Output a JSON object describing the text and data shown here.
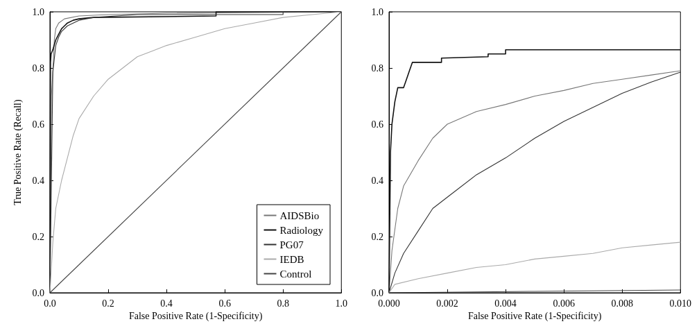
{
  "chart_data": [
    {
      "type": "line",
      "xlabel": "False Positive Rate (1-Specificity)",
      "ylabel": "True Positive Rate (Recall)",
      "xlim": [
        0,
        1
      ],
      "ylim": [
        0,
        1
      ],
      "xticks": [
        {
          "value": 0,
          "label": "0.0"
        },
        {
          "value": 0.2,
          "label": "0.2"
        },
        {
          "value": 0.4,
          "label": "0.4"
        },
        {
          "value": 0.6,
          "label": "0.6"
        },
        {
          "value": 0.8,
          "label": "0.8"
        },
        {
          "value": 1,
          "label": "1.0"
        }
      ],
      "yticks": [
        {
          "value": 0,
          "label": "0.0"
        },
        {
          "value": 0.2,
          "label": "0.2"
        },
        {
          "value": 0.4,
          "label": "0.4"
        },
        {
          "value": 0.6,
          "label": "0.6"
        },
        {
          "value": 0.8,
          "label": "0.8"
        },
        {
          "value": 1,
          "label": "1.0"
        }
      ],
      "grid": false,
      "legend": "bottom right",
      "marker": "none",
      "series": [
        {
          "name": "AIDSBio",
          "color": "#777777",
          "x": [
            0,
            0.005,
            0.01,
            0.015,
            0.02,
            0.03,
            0.05,
            0.1,
            0.2,
            0.4,
            1
          ],
          "values": [
            0,
            0.7,
            0.79,
            0.9,
            0.94,
            0.96,
            0.975,
            0.985,
            0.99,
            0.995,
            1
          ]
        },
        {
          "name": "Radiology",
          "color": "#111111",
          "x": [
            0,
            0.001,
            0.002,
            0.004,
            0.01,
            0.02,
            0.03,
            0.04,
            0.05,
            0.06,
            0.08,
            0.1,
            0.15,
            0.57,
            0.57,
            1
          ],
          "values": [
            0,
            0.5,
            0.82,
            0.85,
            0.865,
            0.9,
            0.92,
            0.94,
            0.95,
            0.96,
            0.97,
            0.975,
            0.98,
            0.985,
            1,
            1
          ]
        },
        {
          "name": "PG07",
          "color": "#333333",
          "x": [
            0,
            0.01,
            0.02,
            0.03,
            0.04,
            0.06,
            0.08,
            0.1,
            0.15,
            0.3,
            0.8,
            0.8,
            1
          ],
          "values": [
            0,
            0.785,
            0.88,
            0.91,
            0.93,
            0.95,
            0.96,
            0.97,
            0.98,
            0.99,
            0.99,
            1,
            1
          ]
        },
        {
          "name": "IEDB",
          "color": "#aaaaaa",
          "x": [
            0,
            0.01,
            0.02,
            0.04,
            0.06,
            0.08,
            0.1,
            0.15,
            0.2,
            0.25,
            0.3,
            0.35,
            0.4,
            0.5,
            0.6,
            0.7,
            0.8,
            0.9,
            1
          ],
          "values": [
            0,
            0.18,
            0.3,
            0.4,
            0.48,
            0.56,
            0.62,
            0.7,
            0.76,
            0.8,
            0.84,
            0.86,
            0.88,
            0.91,
            0.94,
            0.96,
            0.98,
            0.99,
            1
          ]
        },
        {
          "name": "Control",
          "color": "#444444",
          "x": [
            0,
            1
          ],
          "values": [
            0,
            1
          ]
        }
      ]
    },
    {
      "type": "line",
      "xlabel": "False Positive Rate (1-Specificity)",
      "xlim": [
        0,
        0.01
      ],
      "ylim": [
        0,
        1
      ],
      "xticks": [
        {
          "value": 0,
          "label": "0.000"
        },
        {
          "value": 0.002,
          "label": "0.002"
        },
        {
          "value": 0.004,
          "label": "0.004"
        },
        {
          "value": 0.006,
          "label": "0.006"
        },
        {
          "value": 0.008,
          "label": "0.008"
        },
        {
          "value": 0.01,
          "label": "0.010"
        }
      ],
      "yticks": [
        {
          "value": 0,
          "label": "0.0"
        },
        {
          "value": 0.2,
          "label": "0.2"
        },
        {
          "value": 0.4,
          "label": "0.4"
        },
        {
          "value": 0.6,
          "label": "0.6"
        },
        {
          "value": 0.8,
          "label": "0.8"
        },
        {
          "value": 1,
          "label": "1.0"
        }
      ],
      "grid": false,
      "marker": "none",
      "series": [
        {
          "color": "#777777",
          "x": [
            0,
            0.0001,
            0.0003,
            0.0005,
            0.001,
            0.0015,
            0.002,
            0.003,
            0.004,
            0.005,
            0.006,
            0.007,
            0.008,
            0.009,
            0.01
          ],
          "values": [
            0,
            0.15,
            0.3,
            0.38,
            0.47,
            0.55,
            0.6,
            0.645,
            0.67,
            0.7,
            0.72,
            0.745,
            0.76,
            0.775,
            0.79
          ]
        },
        {
          "color": "#111111",
          "x": [
            0,
            5e-05,
            0.0001,
            0.0002,
            0.0003,
            0.0005,
            0.0006,
            0.0007,
            0.0008,
            0.0018,
            0.0018,
            0.0034,
            0.0034,
            0.004,
            0.004,
            0.01
          ],
          "values": [
            0,
            0.5,
            0.6,
            0.68,
            0.73,
            0.73,
            0.76,
            0.79,
            0.82,
            0.82,
            0.835,
            0.84,
            0.85,
            0.85,
            0.865,
            0.865
          ]
        },
        {
          "color": "#333333",
          "x": [
            0,
            0.0002,
            0.0005,
            0.001,
            0.0015,
            0.002,
            0.003,
            0.004,
            0.005,
            0.006,
            0.007,
            0.008,
            0.009,
            0.01
          ],
          "values": [
            0,
            0.07,
            0.14,
            0.22,
            0.3,
            0.34,
            0.42,
            0.48,
            0.55,
            0.61,
            0.66,
            0.71,
            0.75,
            0.785
          ]
        },
        {
          "color": "#aaaaaa",
          "x": [
            0,
            0.0002,
            0.001,
            0.002,
            0.003,
            0.004,
            0.005,
            0.006,
            0.007,
            0.008,
            0.009,
            0.01
          ],
          "values": [
            0,
            0.03,
            0.05,
            0.07,
            0.09,
            0.1,
            0.12,
            0.13,
            0.14,
            0.16,
            0.17,
            0.18
          ]
        },
        {
          "color": "#444444",
          "x": [
            0,
            0.005,
            0.01
          ],
          "values": [
            0,
            0.005,
            0.01
          ]
        }
      ]
    }
  ]
}
